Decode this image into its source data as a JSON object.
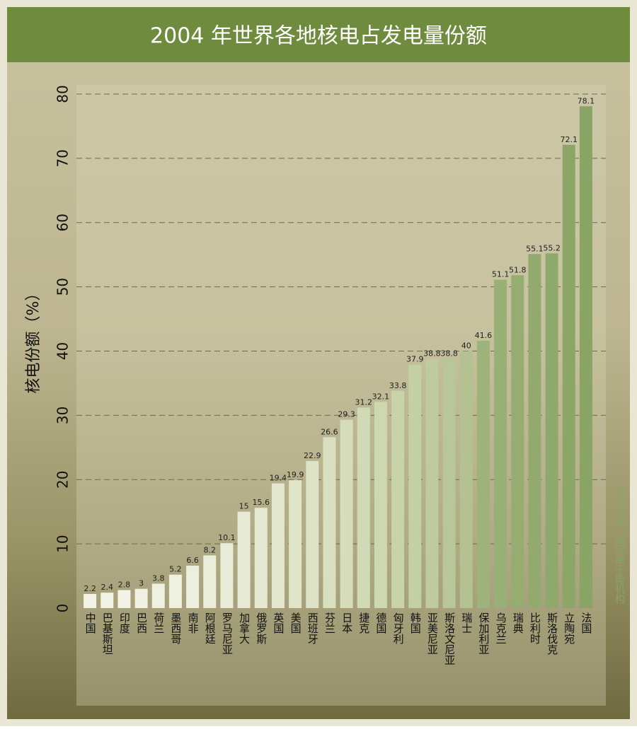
{
  "chart_data": {
    "type": "bar",
    "title": "2004 年世界各地核电占发电量份额",
    "y_label": "核电份额（%）",
    "source": "资料来源：国际原子能机构",
    "categories": [
      "中国",
      "巴基斯坦",
      "印度",
      "巴西",
      "荷兰",
      "墨西哥",
      "南非",
      "阿根廷",
      "罗马尼亚",
      "加拿大",
      "俄罗斯",
      "英国",
      "美国",
      "西班牙",
      "芬兰",
      "日本",
      "捷克",
      "德国",
      "匈牙利",
      "韩国",
      "亚美尼亚",
      "斯洛文尼亚",
      "瑞士",
      "保加利亚",
      "乌克兰",
      "瑞典",
      "比利时",
      "斯洛伐克",
      "立陶宛",
      "法国"
    ],
    "values": [
      2.2,
      2.4,
      2.8,
      3,
      3.8,
      5.2,
      6.6,
      8.2,
      10.1,
      15,
      15.6,
      19.4,
      19.9,
      22.9,
      26.6,
      29.3,
      31.2,
      32.1,
      33.8,
      37.9,
      38.8,
      38.8,
      40,
      41.6,
      51.1,
      51.8,
      55.1,
      55.2,
      72.1,
      78.1
    ],
    "colors": [
      "#f2f2e6",
      "#f2f2e6",
      "#f2f2e6",
      "#f0f1e3",
      "#eef0e0",
      "#eef0e0",
      "#ecefdd",
      "#ebeedb",
      "#e9ecd8",
      "#e7ead5",
      "#e5e9d2",
      "#e3e7cf",
      "#e0e5ca",
      "#dde3c6",
      "#d9e0c1",
      "#d5ddbb",
      "#d1dab6",
      "#cdd7b0",
      "#c8d3aa",
      "#c3cfa4",
      "#becb9e",
      "#b9c798",
      "#b3c290",
      "#9eb37b",
      "#98af75",
      "#95ad71",
      "#92aa6e",
      "#8fa86b",
      "#8ca668",
      "#8aa466"
    ],
    "ylim": [
      0,
      80
    ],
    "yticks": [
      0,
      10,
      20,
      30,
      40,
      50,
      60,
      70,
      80
    ],
    "grid": true
  }
}
